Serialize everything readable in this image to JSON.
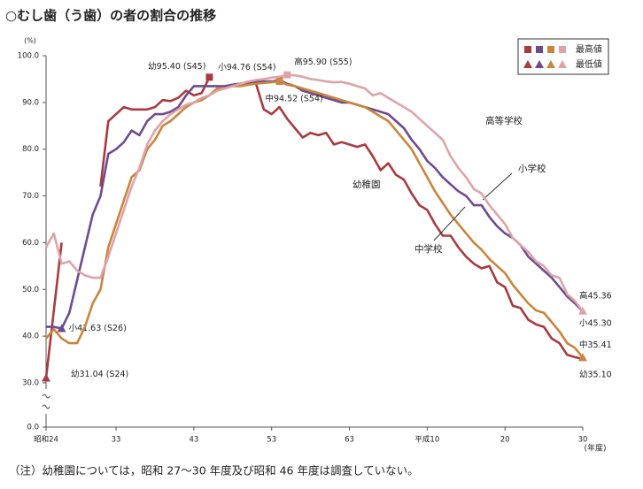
{
  "chart_data": {
    "type": "line",
    "title": "○むし歯（う歯）の者の割合の推移",
    "y_unit": "(%)",
    "x_unit": "(年度)",
    "note": "（注）幼稚園については，昭和 27～30 年度及び昭和 46 年度は調査していない。",
    "categories": [
      "昭和24",
      null,
      null,
      null,
      null,
      null,
      null,
      null,
      null,
      "33",
      null,
      null,
      null,
      null,
      null,
      null,
      null,
      null,
      null,
      "43",
      null,
      null,
      null,
      null,
      null,
      null,
      null,
      null,
      null,
      "53",
      null,
      null,
      null,
      null,
      null,
      null,
      null,
      null,
      null,
      "63",
      null,
      null,
      null,
      null,
      null,
      null,
      null,
      null,
      null,
      "平成10",
      null,
      null,
      null,
      null,
      null,
      null,
      null,
      null,
      null,
      "20",
      null,
      null,
      null,
      null,
      null,
      null,
      null,
      null,
      null,
      "30"
    ],
    "ylim": [
      0,
      100
    ],
    "axis_break": [
      0,
      30
    ],
    "yticks": [
      {
        "value": 0,
        "label": "0.0"
      },
      {
        "value": 30,
        "label": "30.0"
      },
      {
        "value": 40,
        "label": "40.0"
      },
      {
        "value": 50,
        "label": "50.0"
      },
      {
        "value": 60,
        "label": "60.0"
      },
      {
        "value": 70,
        "label": "70.0"
      },
      {
        "value": 80,
        "label": "80.0"
      },
      {
        "value": 90,
        "label": "90.0"
      },
      {
        "value": 100,
        "label": "100.0"
      }
    ],
    "marker_legend": {
      "max": "最高値",
      "min": "最低値"
    },
    "series": [
      {
        "name": "幼稚園",
        "color": "#a93a3f",
        "values": [
          31.04,
          45.5,
          60,
          null,
          null,
          null,
          null,
          72,
          86,
          87.5,
          89,
          88.5,
          88.5,
          88.5,
          89,
          90.5,
          90.3,
          91,
          92.5,
          91.5,
          92,
          95.4,
          null,
          93.5,
          93.8,
          94,
          94.3,
          94,
          88.5,
          87.5,
          89,
          86.5,
          84.5,
          82.5,
          83.5,
          83,
          83.5,
          81,
          81.5,
          81,
          80.5,
          81,
          78.5,
          75.5,
          77,
          74.5,
          73.5,
          70.5,
          68,
          67,
          64,
          61.5,
          61.5,
          59,
          57,
          55.5,
          54.5,
          55,
          51.5,
          50.5,
          46.5,
          46,
          43.5,
          42.5,
          42,
          39.5,
          38.5,
          36,
          35.5,
          35.1
        ],
        "value_labels": [
          "幼31.04 (S24)",
          null,
          null,
          null,
          null,
          null,
          null,
          null,
          null,
          null,
          null,
          null,
          null,
          null,
          null,
          null,
          null,
          null,
          null,
          null,
          null,
          "幼95.40 (S45)",
          null,
          null,
          null,
          null,
          null,
          null,
          null,
          null,
          null,
          null,
          null,
          null,
          null,
          null,
          null,
          null,
          null,
          null,
          null,
          null,
          null,
          null,
          null,
          null,
          null,
          null,
          null,
          null,
          null,
          null,
          null,
          null,
          null,
          null,
          null,
          null,
          null,
          null,
          null,
          null,
          null,
          null,
          null,
          null,
          null,
          null,
          null,
          "幼35.10"
        ]
      },
      {
        "name": "小学校",
        "color": "#6e4b8e",
        "values": [
          42,
          42,
          41.63,
          45,
          52,
          59,
          66,
          70,
          79,
          80,
          81.5,
          84,
          83,
          86,
          87.5,
          87.5,
          88,
          89,
          91.5,
          93.5,
          93.5,
          93.5,
          93.5,
          93.5,
          93.8,
          94,
          94.3,
          94.4,
          94.5,
          94.5,
          94.76,
          94,
          93.5,
          92.5,
          92,
          91.5,
          91,
          90.5,
          90,
          90,
          89.5,
          89,
          88.5,
          88,
          87.5,
          86,
          84.5,
          82,
          80,
          77.5,
          76,
          74,
          72.5,
          71,
          70,
          68,
          68,
          65.5,
          63.5,
          62,
          61,
          59.5,
          57,
          55.5,
          54,
          52.5,
          50.5,
          48.5,
          47,
          45.3
        ],
        "value_labels": [
          null,
          null,
          "小41.63 (S26)",
          null,
          null,
          null,
          null,
          null,
          null,
          null,
          null,
          null,
          null,
          null,
          null,
          null,
          null,
          null,
          null,
          null,
          null,
          null,
          null,
          null,
          null,
          null,
          null,
          null,
          null,
          null,
          "小94.76 (S54)",
          null,
          null,
          null,
          null,
          null,
          null,
          null,
          null,
          null,
          null,
          null,
          null,
          null,
          null,
          null,
          null,
          null,
          null,
          null,
          null,
          null,
          null,
          null,
          null,
          null,
          null,
          null,
          null,
          null,
          null,
          null,
          null,
          null,
          null,
          null,
          null,
          null,
          null,
          "小45.30"
        ]
      },
      {
        "name": "中学校",
        "color": "#c9853a",
        "values": [
          39.5,
          41.5,
          39.5,
          38.5,
          38.5,
          42,
          47,
          50,
          59,
          64,
          69,
          74,
          75.5,
          80,
          82,
          85,
          86,
          87.5,
          89,
          90,
          90.5,
          91.5,
          93,
          93,
          93.5,
          93.5,
          93.8,
          94,
          94.2,
          94.3,
          94.52,
          93.8,
          93.5,
          93,
          92.5,
          92,
          91.5,
          91,
          90.5,
          90,
          89.5,
          89,
          88,
          87,
          86,
          84,
          82,
          80,
          77,
          74,
          71,
          68.5,
          66,
          64,
          62,
          60,
          58.5,
          56.5,
          55,
          53.5,
          51,
          49,
          47,
          45.5,
          45,
          43,
          41,
          38.5,
          37.5,
          35.41
        ],
        "value_labels": [
          null,
          null,
          null,
          null,
          null,
          null,
          null,
          null,
          null,
          null,
          null,
          null,
          null,
          null,
          null,
          null,
          null,
          null,
          null,
          null,
          null,
          null,
          null,
          null,
          null,
          null,
          null,
          null,
          null,
          null,
          "中94.52 (S54)",
          null,
          null,
          null,
          null,
          null,
          null,
          null,
          null,
          null,
          null,
          null,
          null,
          null,
          null,
          null,
          null,
          null,
          null,
          null,
          null,
          null,
          null,
          null,
          null,
          null,
          null,
          null,
          null,
          null,
          null,
          null,
          null,
          null,
          null,
          null,
          null,
          null,
          null,
          "中35.41"
        ]
      },
      {
        "name": "高等学校",
        "color": "#dea3aa",
        "values": [
          59,
          62,
          55.5,
          56,
          54,
          53,
          52.5,
          52.5,
          57,
          62,
          67,
          72,
          76,
          81,
          84,
          86,
          87.5,
          88.5,
          89.5,
          90,
          91,
          91.5,
          92.5,
          93,
          93.5,
          94,
          94.5,
          94.8,
          95,
          95.3,
          95.5,
          95.9,
          95.8,
          95.5,
          95,
          94.8,
          94.5,
          94.3,
          94.4,
          94,
          93.5,
          93,
          91.5,
          92,
          91,
          90,
          89,
          88,
          86.5,
          85,
          83.5,
          82,
          78.5,
          76,
          74,
          71.5,
          70.5,
          68,
          66,
          64,
          61,
          59.5,
          58,
          56,
          55,
          53,
          52.5,
          49,
          47.5,
          45.36
        ],
        "value_labels": [
          null,
          null,
          null,
          null,
          null,
          null,
          null,
          null,
          null,
          null,
          null,
          null,
          null,
          null,
          null,
          null,
          null,
          null,
          null,
          null,
          null,
          null,
          null,
          null,
          null,
          null,
          null,
          null,
          null,
          null,
          null,
          "高95.90 (S55)",
          null,
          null,
          null,
          null,
          null,
          null,
          null,
          null,
          null,
          null,
          null,
          null,
          null,
          null,
          null,
          null,
          null,
          null,
          null,
          null,
          null,
          null,
          null,
          null,
          null,
          null,
          null,
          null,
          null,
          null,
          null,
          null,
          null,
          null,
          null,
          null,
          null,
          "高45.36"
        ]
      }
    ]
  }
}
